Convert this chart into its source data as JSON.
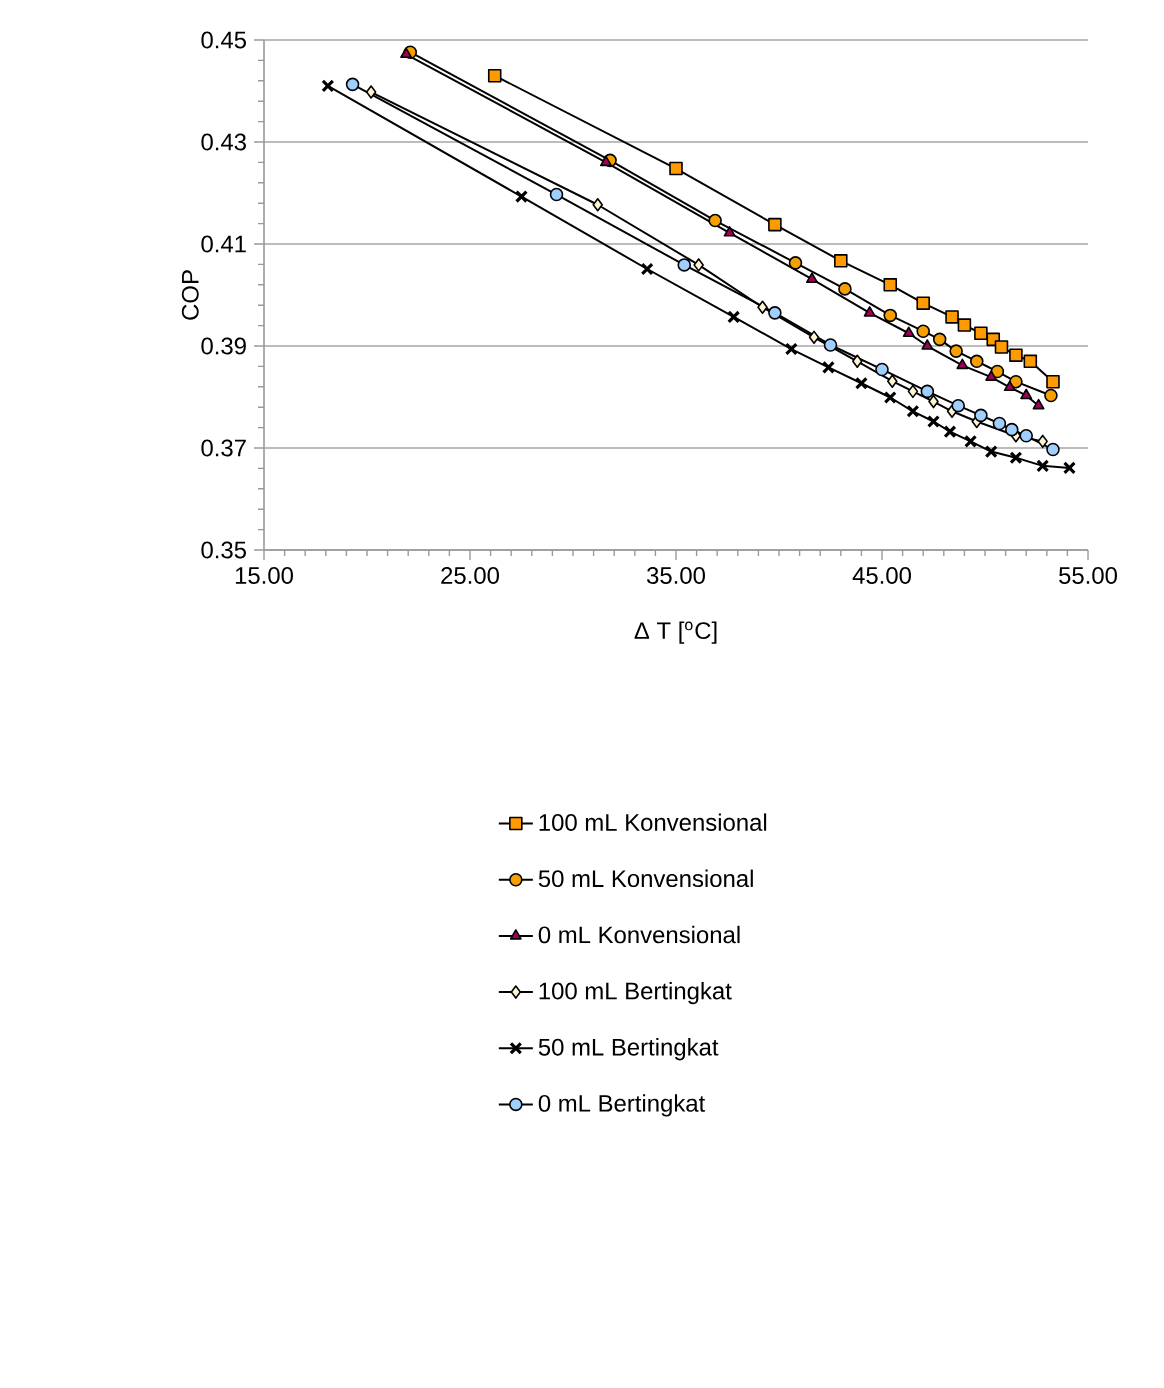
{
  "chart_data": {
    "type": "line",
    "xlabel": "Δ T [$^{o}$C]",
    "ylabel": "COP",
    "xlim": [
      15,
      55
    ],
    "xticks": [
      {
        "value": 15,
        "label": "15.00"
      },
      {
        "value": 25,
        "label": "25.00"
      },
      {
        "value": 35,
        "label": "35.00"
      },
      {
        "value": 45,
        "label": "45.00"
      },
      {
        "value": 55,
        "label": "55.00"
      }
    ],
    "ylim": [
      0.35,
      0.45
    ],
    "yticks": [
      0.35,
      0.37,
      0.39,
      0.41,
      0.43,
      0.45
    ],
    "grid": "y",
    "legend": "bottom",
    "series": [
      {
        "name": "100 mL Konvensional",
        "color": "#ff9a00",
        "marker": "square",
        "x": [
          26.2,
          35.0,
          39.8,
          43.0,
          45.4,
          47.0,
          48.4,
          49.0,
          49.8,
          50.4,
          50.8,
          51.5,
          52.2,
          53.3
        ],
        "values": [
          0.443,
          0.4248,
          0.4138,
          0.4067,
          0.402,
          0.3984,
          0.3957,
          0.3941,
          0.3925,
          0.3913,
          0.3898,
          0.3882,
          0.387,
          0.383
        ]
      },
      {
        "name": "50 mL Konvensional",
        "color": "#f5a000",
        "marker": "circle",
        "x": [
          22.1,
          31.8,
          36.9,
          40.8,
          43.2,
          45.4,
          47.0,
          47.8,
          48.6,
          49.6,
          50.6,
          51.5,
          53.2
        ],
        "values": [
          0.4476,
          0.4264,
          0.4146,
          0.4063,
          0.4012,
          0.396,
          0.3929,
          0.3913,
          0.389,
          0.387,
          0.385,
          0.383,
          0.3803
        ]
      },
      {
        "name": "0 mL Konvensional",
        "color": "#a0005a",
        "marker": "triangle",
        "x": [
          21.9,
          31.6,
          37.6,
          41.6,
          44.4,
          46.3,
          47.2,
          48.9,
          50.3,
          51.2,
          52.0,
          52.6
        ],
        "values": [
          0.4472,
          0.426,
          0.4122,
          0.4031,
          0.3965,
          0.3925,
          0.39,
          0.3862,
          0.3839,
          0.3819,
          0.3803,
          0.3783
        ]
      },
      {
        "name": "100 mL Bertingkat",
        "color": "#fff5d0",
        "marker": "diamond",
        "x": [
          20.2,
          31.2,
          36.1,
          39.2,
          41.7,
          43.8,
          45.5,
          46.5,
          47.5,
          48.4,
          49.6,
          50.6,
          51.5,
          52.8
        ],
        "values": [
          0.4398,
          0.4177,
          0.4059,
          0.3976,
          0.3917,
          0.387,
          0.3831,
          0.3811,
          0.3791,
          0.3772,
          0.3752,
          null,
          0.3724,
          0.3713
        ]
      },
      {
        "name": "50 mL Bertingkat",
        "color": "#000000",
        "marker": "cross",
        "x": [
          18.1,
          27.5,
          33.6,
          37.8,
          40.6,
          42.4,
          44.0,
          45.4,
          46.5,
          47.5,
          48.3,
          49.3,
          50.3,
          51.5,
          52.8,
          54.1
        ],
        "values": [
          0.441,
          0.4193,
          0.4051,
          0.3957,
          0.3894,
          0.3858,
          0.3827,
          0.3799,
          0.3772,
          0.3752,
          0.3732,
          0.3713,
          0.3693,
          0.3681,
          0.3665,
          0.3661
        ]
      },
      {
        "name": "0 mL Bertingkat",
        "color": "#9fcfff",
        "marker": "circle",
        "x": [
          19.3,
          29.2,
          35.4,
          39.8,
          42.5,
          45.0,
          47.2,
          48.7,
          49.8,
          50.7,
          51.3,
          52.0,
          53.3
        ],
        "values": [
          0.4413,
          0.4197,
          0.4059,
          0.3965,
          0.3902,
          0.3854,
          0.3811,
          0.3783,
          0.3764,
          0.3748,
          0.3736,
          0.3724,
          0.3697
        ]
      }
    ]
  }
}
